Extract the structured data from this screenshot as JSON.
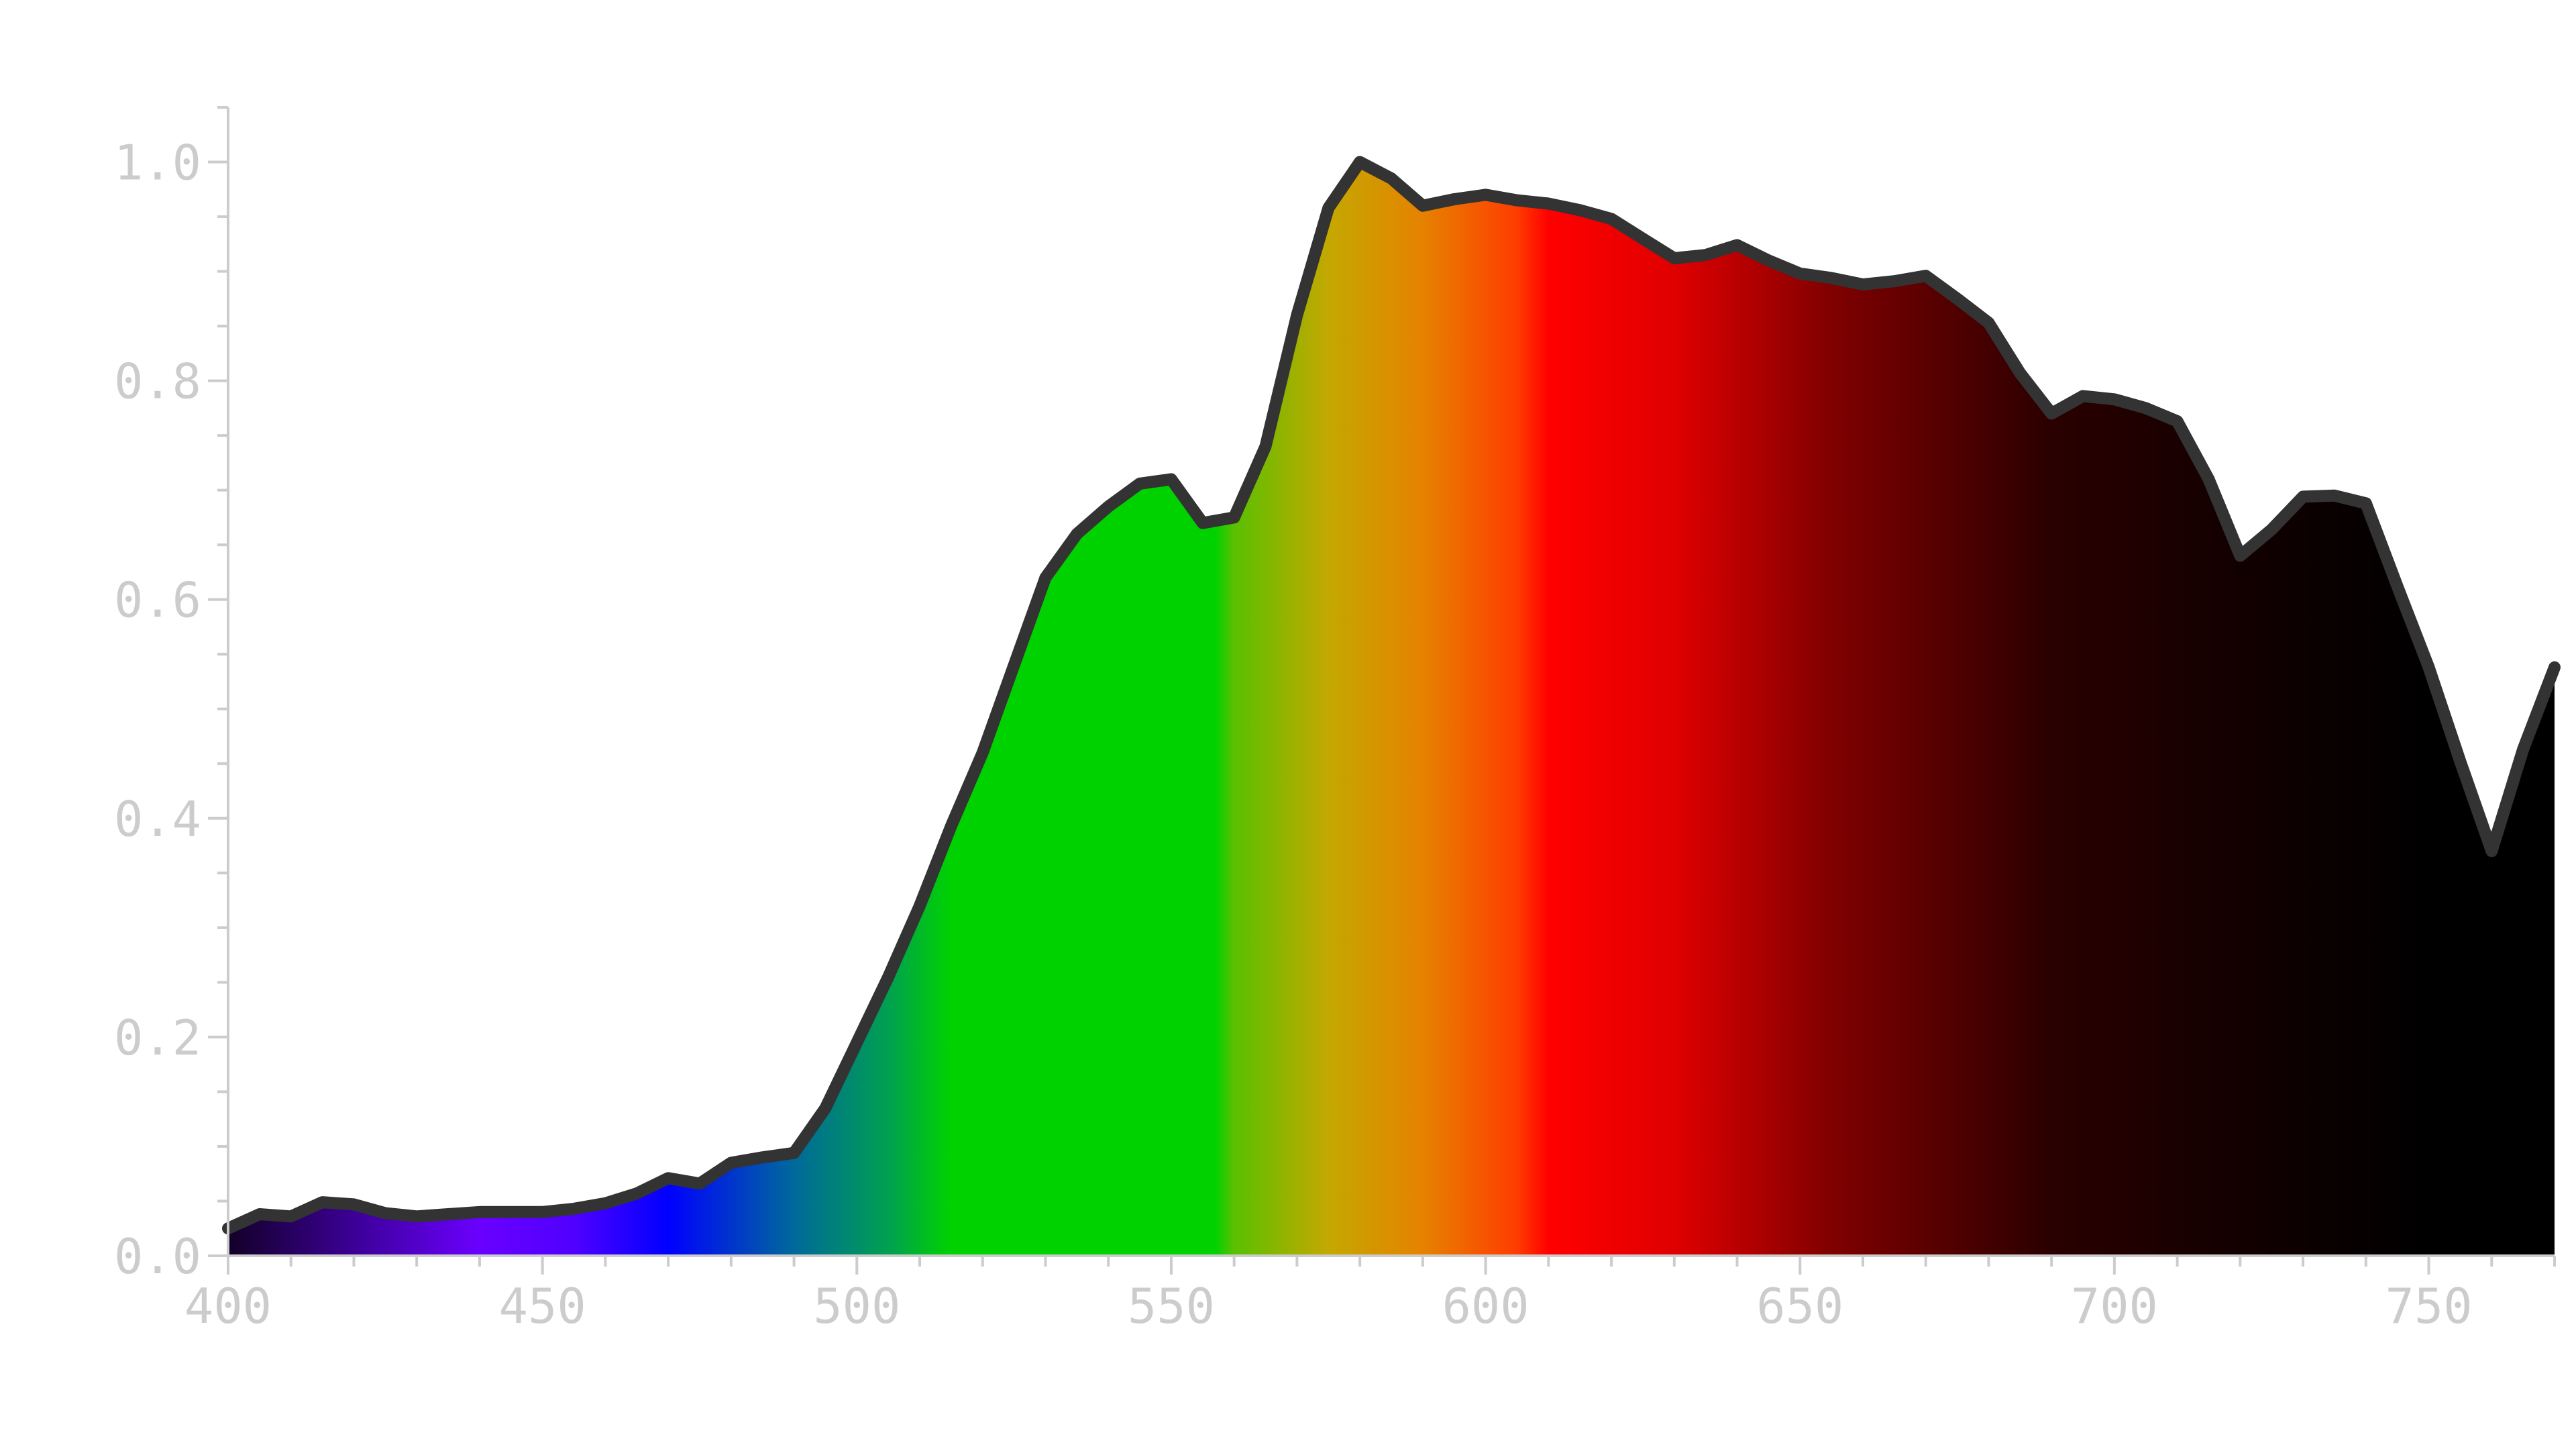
{
  "chart_data": {
    "type": "area",
    "title": "",
    "xlabel": "",
    "ylabel": "",
    "xlim": [
      400,
      770
    ],
    "ylim": [
      0,
      1.05
    ],
    "x_ticks": [
      400,
      450,
      500,
      550,
      600,
      650,
      700,
      750
    ],
    "x_tick_labels": [
      "400",
      "450",
      "500",
      "550",
      "600",
      "650",
      "700",
      "750"
    ],
    "x_minor_step": 10,
    "y_ticks": [
      0.0,
      0.2,
      0.4,
      0.6,
      0.8,
      1.0
    ],
    "y_tick_labels": [
      "0.0",
      "0.2",
      "0.4",
      "0.6",
      "0.8",
      "1.0"
    ],
    "y_minor_step": 0.05,
    "grid": false,
    "fill": "visible-spectrum gradient",
    "line_color": "#333333",
    "axis_color": "#cccccc",
    "spectrum_stops": [
      {
        "nm": 400,
        "color": "#120028"
      },
      {
        "nm": 420,
        "color": "#3c0096"
      },
      {
        "nm": 440,
        "color": "#6a00ff"
      },
      {
        "nm": 455,
        "color": "#5000ff"
      },
      {
        "nm": 470,
        "color": "#0000ff"
      },
      {
        "nm": 490,
        "color": "#00699b"
      },
      {
        "nm": 505,
        "color": "#00a050"
      },
      {
        "nm": 515,
        "color": "#00d200"
      },
      {
        "nm": 557,
        "color": "#00d200"
      },
      {
        "nm": 560,
        "color": "#5ac000"
      },
      {
        "nm": 575,
        "color": "#c4a800"
      },
      {
        "nm": 590,
        "color": "#e68200"
      },
      {
        "nm": 605,
        "color": "#ff3c00"
      },
      {
        "nm": 610,
        "color": "#ff0000"
      },
      {
        "nm": 630,
        "color": "#e00000"
      },
      {
        "nm": 655,
        "color": "#800000"
      },
      {
        "nm": 690,
        "color": "#2a0000"
      },
      {
        "nm": 720,
        "color": "#120000"
      },
      {
        "nm": 750,
        "color": "#000000"
      }
    ],
    "series": [
      {
        "x": [
          400,
          405,
          410,
          415,
          420,
          425,
          430,
          435,
          440,
          445,
          450,
          455,
          460,
          465,
          470,
          475,
          480,
          485,
          490,
          495,
          500,
          505,
          510,
          515,
          520,
          525,
          530,
          535,
          540,
          545,
          550,
          555,
          560,
          565,
          570,
          575,
          580,
          585,
          590,
          595,
          600,
          605,
          610,
          615,
          620,
          625,
          630,
          635,
          640,
          645,
          650,
          655,
          660,
          665,
          670,
          675,
          680,
          685,
          690,
          695,
          700,
          705,
          710,
          715,
          720,
          725,
          730,
          735,
          740,
          745,
          750,
          755,
          760,
          765,
          770
        ],
        "values": [
          0.025,
          0.038,
          0.036,
          0.049,
          0.047,
          0.039,
          0.036,
          0.038,
          0.04,
          0.04,
          0.04,
          0.043,
          0.048,
          0.057,
          0.071,
          0.066,
          0.085,
          0.09,
          0.094,
          0.135,
          0.195,
          0.255,
          0.32,
          0.393,
          0.46,
          0.54,
          0.62,
          0.66,
          0.685,
          0.706,
          0.71,
          0.67,
          0.675,
          0.74,
          0.86,
          0.958,
          1.0,
          0.985,
          0.96,
          0.966,
          0.97,
          0.965,
          0.962,
          0.956,
          0.948,
          0.93,
          0.912,
          0.915,
          0.924,
          0.91,
          0.898,
          0.894,
          0.888,
          0.891,
          0.896,
          0.875,
          0.853,
          0.807,
          0.77,
          0.786,
          0.783,
          0.775,
          0.763,
          0.71,
          0.64,
          0.664,
          0.694,
          0.695,
          0.688,
          0.612,
          0.538,
          0.452,
          0.37,
          0.463,
          0.538
        ]
      }
    ]
  }
}
